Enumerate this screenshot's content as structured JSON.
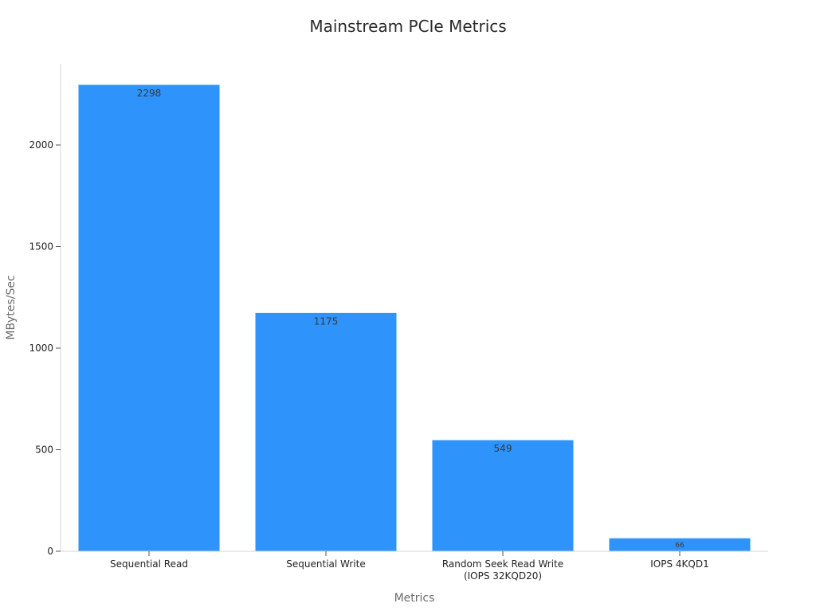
{
  "chart_data": {
    "type": "bar",
    "title": "Mainstream PCIe Metrics",
    "xlabel": "Metrics",
    "ylabel": "MBytes/Sec",
    "categories": [
      [
        "Sequential Read"
      ],
      [
        "Sequential Write"
      ],
      [
        "Random Seek Read Write",
        "(IOPS 32KQD20)"
      ],
      [
        "IOPS 4KQD1"
      ]
    ],
    "values": [
      2298,
      1175,
      549,
      66
    ],
    "data_labels": [
      "2298",
      "1175",
      "549",
      "66"
    ],
    "y_ticks": [
      0,
      500,
      1000,
      1500,
      2000
    ],
    "y_tick_labels": [
      "0",
      "500",
      "1000",
      "1500",
      "2000"
    ],
    "ylim": [
      0,
      2400
    ],
    "grid": false,
    "legend": "none",
    "bar_color": "#2e93fa"
  }
}
